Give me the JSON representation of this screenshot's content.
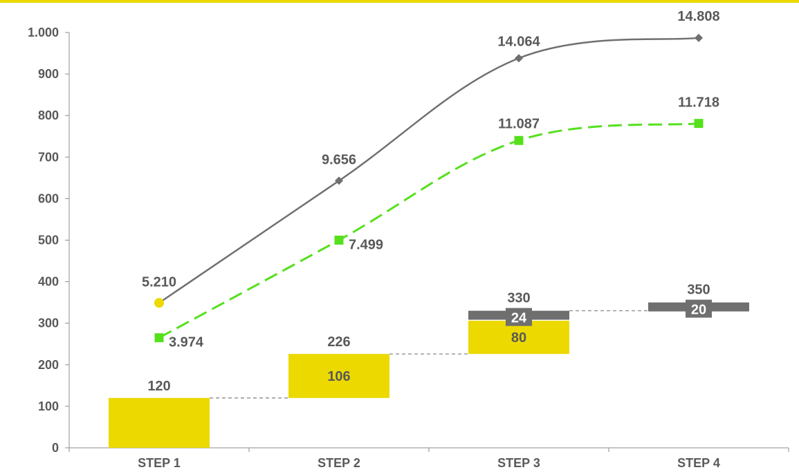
{
  "colors": {
    "yellow": "#ecd900",
    "gray": "#6f6f6f",
    "green": "#55e01c",
    "text": "#595959"
  },
  "chart_data": {
    "type": "bar",
    "categories": [
      "STEP 1",
      "STEP 2",
      "STEP 3",
      "STEP 4"
    ],
    "ylim": [
      0,
      1000
    ],
    "yticks": [
      0,
      100,
      200,
      300,
      400,
      500,
      600,
      700,
      800,
      900,
      1000
    ],
    "ytick_labels": [
      "0",
      "100",
      "200",
      "300",
      "400",
      "500",
      "600",
      "700",
      "800",
      "900",
      "1.000"
    ],
    "grid": false,
    "waterfall": {
      "totals": [
        "120",
        "226",
        "330",
        "350"
      ],
      "segments": [
        {
          "category": "STEP 1",
          "base": 0,
          "value": 120,
          "color": "yellow",
          "label": ""
        },
        {
          "category": "STEP 2",
          "base": 120,
          "value": 106,
          "color": "yellow",
          "label": "106"
        },
        {
          "category": "STEP 3",
          "base": 226,
          "value": 80,
          "color": "yellow",
          "label": "80"
        },
        {
          "category": "STEP 3",
          "base": 306,
          "value": 24,
          "color": "gray",
          "label": "24"
        },
        {
          "category": "STEP 4",
          "base": 330,
          "value": 20,
          "color": "gray",
          "label": "20"
        }
      ]
    },
    "series": [
      {
        "marker": "diamond",
        "style": "solid",
        "color": "gray",
        "values": [
          349,
          643,
          938,
          987
        ],
        "labels": [
          "5.210",
          "9.656",
          "14.064",
          "14.808"
        ]
      },
      {
        "marker": "square",
        "style": "dashed",
        "color": "green",
        "values": [
          265,
          500,
          740,
          781
        ],
        "labels": [
          "3.974",
          "7.499",
          "11.087",
          "11.718"
        ]
      }
    ],
    "first_point_marker": {
      "shape": "circle",
      "color": "yellow"
    }
  }
}
